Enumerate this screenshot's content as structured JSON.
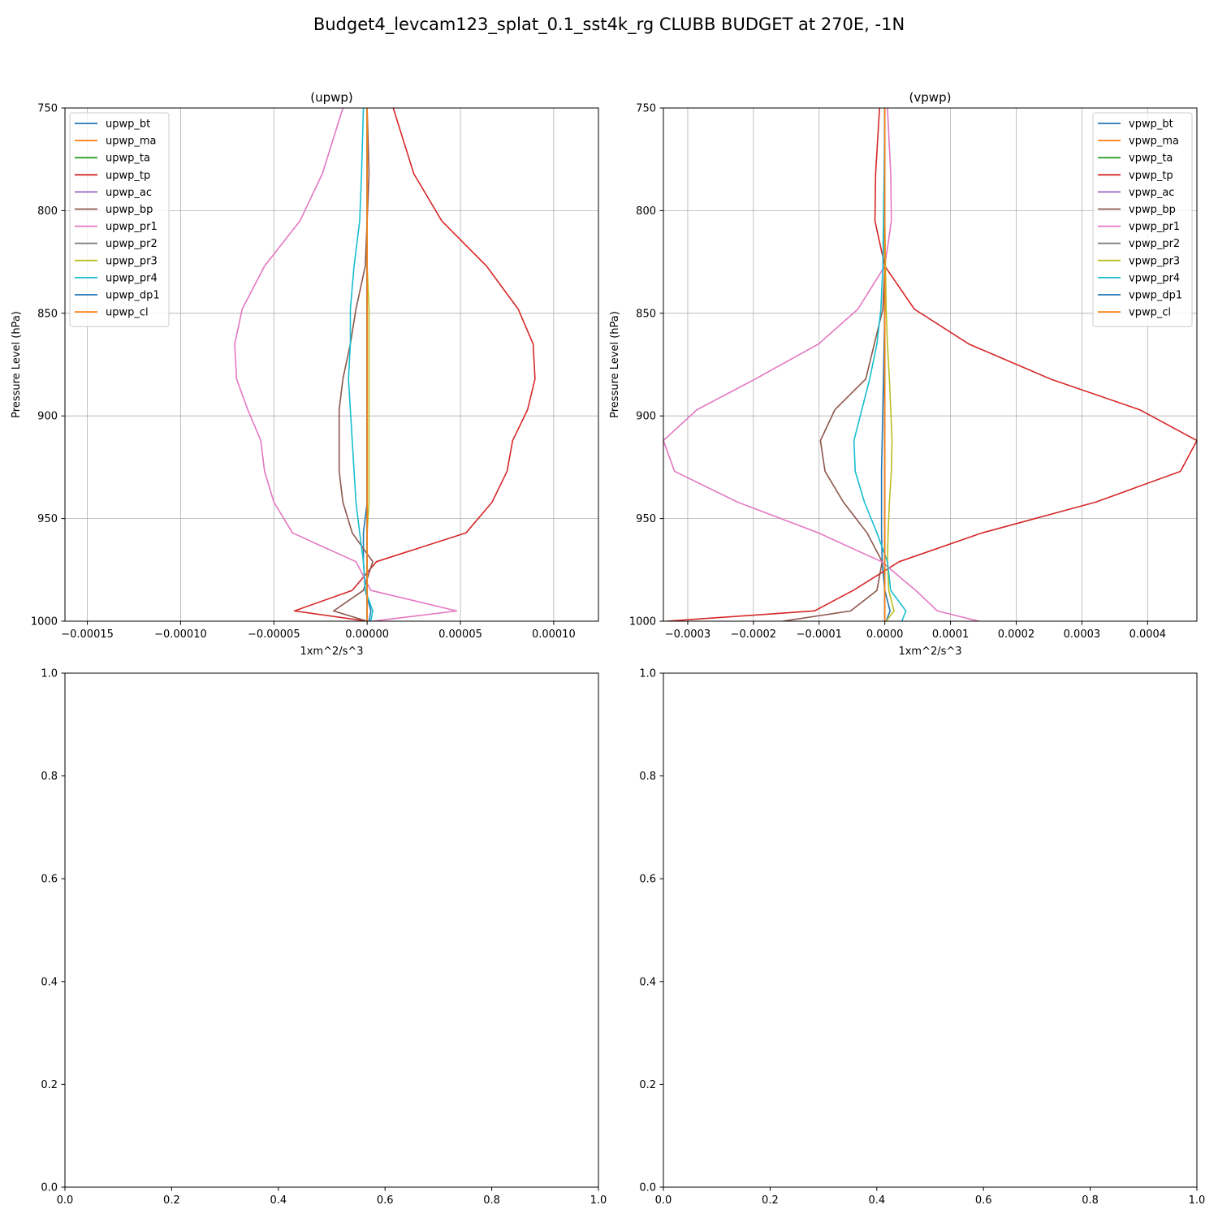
{
  "figure": {
    "suptitle": "Budget4_levcam123_splat_0.1_sst4k_rg CLUBB BUDGET at 270E, -1N"
  },
  "chart_data": [
    {
      "type": "line",
      "title": "(upwp)",
      "xlabel": "1xm^2/s^3",
      "ylabel": "Pressure Level (hPa)",
      "xlim": [
        -0.000162,
        0.000124
      ],
      "ylim": [
        1000,
        750
      ],
      "y_inverted": true,
      "grid": true,
      "legend_placement": "upper-left",
      "x_ticks": [
        -0.00015,
        -0.0001,
        -5e-05,
        0,
        5e-05,
        0.0001
      ],
      "x_tick_labels": [
        "−0.00015",
        "−0.00010",
        "−0.00005",
        "0.00000",
        "0.00005",
        "0.00010"
      ],
      "y_ticks": [
        750,
        800,
        850,
        900,
        950,
        1000
      ],
      "y_tick_labels": [
        "750",
        "800",
        "850",
        "900",
        "950",
        "1000"
      ],
      "levels": [
        750,
        782,
        805,
        827,
        848,
        865,
        882,
        897,
        912,
        927,
        942,
        957,
        971,
        985,
        995,
        1000
      ],
      "series": [
        {
          "name": "upwp_bt",
          "color": "#1f77b4",
          "values": [
            0,
            0,
            0,
            0,
            0,
            0,
            0,
            0,
            0,
            0,
            0,
            -2e-06,
            -2e-06,
            -1e-06,
            2e-06,
            1e-06
          ]
        },
        {
          "name": "upwp_ma",
          "color": "#ff7f0e",
          "values": [
            0,
            0,
            0,
            0,
            0,
            0,
            0,
            0,
            0,
            0,
            0,
            0,
            0,
            0,
            0,
            0
          ]
        },
        {
          "name": "upwp_ta",
          "color": "#2ca02c",
          "values": [
            0,
            0,
            0,
            0,
            0,
            0,
            0,
            0,
            0,
            0,
            0,
            0,
            0,
            0,
            0,
            0
          ]
        },
        {
          "name": "upwp_tp",
          "color": "#d62728",
          "values": [
            1.4e-05,
            2.5e-05,
            4e-05,
            6.4e-05,
            8.1e-05,
            8.9e-05,
            9e-05,
            8.6e-05,
            7.8e-05,
            7.5e-05,
            6.7e-05,
            5.3e-05,
            5e-06,
            -8e-06,
            -3.9e-05,
            0
          ]
        },
        {
          "name": "upwp_ac",
          "color": "#9467bd",
          "values": [
            0,
            0,
            0,
            0,
            0,
            0,
            0,
            0,
            0,
            0,
            0,
            0,
            0,
            0,
            0,
            0
          ]
        },
        {
          "name": "upwp_bp",
          "color": "#8c564b",
          "values": [
            0,
            1e-06,
            0,
            -1e-06,
            -6e-06,
            -9e-06,
            -1.3e-05,
            -1.5e-05,
            -1.5e-05,
            -1.5e-05,
            -1.3e-05,
            -8e-06,
            3e-06,
            -2e-06,
            -1.8e-05,
            0
          ]
        },
        {
          "name": "upwp_pr1",
          "color": "#e377c2",
          "values": [
            -1.3e-05,
            -2.4e-05,
            -3.6e-05,
            -5.5e-05,
            -6.7e-05,
            -7.1e-05,
            -7e-05,
            -6.4e-05,
            -5.7e-05,
            -5.5e-05,
            -5e-05,
            -4e-05,
            -6e-06,
            2e-06,
            4.8e-05,
            3e-06
          ]
        },
        {
          "name": "upwp_pr2",
          "color": "#7f7f7f",
          "values": [
            0,
            0,
            0,
            0,
            0,
            0,
            0,
            0,
            0,
            0,
            0,
            0,
            0,
            0,
            0,
            0
          ]
        },
        {
          "name": "upwp_pr3",
          "color": "#bcbd22",
          "values": [
            0,
            0,
            0,
            0,
            1e-06,
            1e-06,
            1e-06,
            1e-06,
            1e-06,
            1e-06,
            1e-06,
            0,
            0,
            0,
            0,
            0
          ]
        },
        {
          "name": "upwp_pr4",
          "color": "#17becf",
          "values": [
            -2e-06,
            -3e-06,
            -4e-06,
            -7e-06,
            -9e-06,
            -9e-06,
            -1e-05,
            -9e-06,
            -8e-06,
            -7e-06,
            -6e-06,
            -4e-06,
            -2e-06,
            -1e-06,
            3e-06,
            2e-06
          ]
        },
        {
          "name": "upwp_dp1",
          "color": "#1f77b4",
          "values": [
            0,
            0,
            0,
            0,
            0,
            0,
            0,
            0,
            0,
            0,
            0,
            0,
            0,
            0,
            0,
            0
          ]
        },
        {
          "name": "upwp_cl",
          "color": "#ff7f0e",
          "values": [
            0,
            0,
            0,
            0,
            0,
            0,
            0,
            0,
            0,
            0,
            0,
            0,
            0,
            0,
            0,
            0
          ]
        }
      ]
    },
    {
      "type": "line",
      "title": "(vpwp)",
      "xlabel": "1xm^2/s^3",
      "ylabel": "Pressure Level (hPa)",
      "xlim": [
        -0.000337,
        0.000475
      ],
      "ylim": [
        1000,
        750
      ],
      "y_inverted": true,
      "grid": true,
      "legend_placement": "upper-right",
      "x_ticks": [
        -0.0003,
        -0.0002,
        -0.0001,
        0,
        0.0001,
        0.0002,
        0.0003,
        0.0004
      ],
      "x_tick_labels": [
        "−0.0003",
        "−0.0002",
        "−0.0001",
        "0.0000",
        "0.0001",
        "0.0002",
        "0.0003",
        "0.0004"
      ],
      "y_ticks": [
        750,
        800,
        850,
        900,
        950,
        1000
      ],
      "y_tick_labels": [
        "750",
        "800",
        "850",
        "900",
        "950",
        "1000"
      ],
      "levels": [
        750,
        782,
        805,
        827,
        848,
        865,
        882,
        897,
        912,
        927,
        942,
        957,
        971,
        985,
        995,
        1000
      ],
      "series": [
        {
          "name": "vpwp_bt",
          "color": "#1f77b4",
          "values": [
            0,
            0,
            0,
            0,
            0,
            -1e-06,
            -2e-06,
            -3e-06,
            -4e-06,
            -5e-06,
            -5e-06,
            -5e-06,
            -4e-06,
            0,
            8e-06,
            2e-06
          ]
        },
        {
          "name": "vpwp_ma",
          "color": "#ff7f0e",
          "values": [
            0,
            0,
            0,
            0,
            0,
            0,
            0,
            0,
            0,
            0,
            0,
            0,
            0,
            0,
            0,
            0
          ]
        },
        {
          "name": "vpwp_ta",
          "color": "#2ca02c",
          "values": [
            0,
            0,
            0,
            0,
            0,
            0,
            0,
            0,
            0,
            0,
            0,
            0,
            0,
            0,
            0,
            0
          ]
        },
        {
          "name": "vpwp_tp",
          "color": "#d62728",
          "values": [
            -8e-06,
            -1.4e-05,
            -1.5e-05,
            0,
            4.5e-05,
            0.000128,
            0.000252,
            0.000388,
            0.000475,
            0.00045,
            0.000321,
            0.000148,
            2.2e-05,
            -4.8e-05,
            -0.000107,
            -0.000332
          ]
        },
        {
          "name": "vpwp_ac",
          "color": "#9467bd",
          "values": [
            0,
            0,
            0,
            0,
            0,
            0,
            0,
            0,
            0,
            0,
            0,
            0,
            0,
            0,
            0,
            0
          ]
        },
        {
          "name": "vpwp_bp",
          "color": "#8c564b",
          "values": [
            0,
            0,
            0,
            0,
            -3e-06,
            -1.6e-05,
            -2.9e-05,
            -7.6e-05,
            -9.8e-05,
            -9.1e-05,
            -6.3e-05,
            -2.7e-05,
            -4e-06,
            -1.2e-05,
            -5.2e-05,
            -0.000155
          ]
        },
        {
          "name": "vpwp_pr1",
          "color": "#e377c2",
          "values": [
            4e-06,
            9e-06,
            1e-05,
            0,
            -4.1e-05,
            -0.000101,
            -0.000197,
            -0.000286,
            -0.000337,
            -0.00032,
            -0.000224,
            -0.000101,
            -5e-06,
            4.7e-05,
            8e-05,
            0.000143
          ]
        },
        {
          "name": "vpwp_pr2",
          "color": "#7f7f7f",
          "values": [
            0,
            0,
            0,
            0,
            0,
            0,
            0,
            0,
            0,
            0,
            0,
            0,
            0,
            0,
            0,
            0
          ]
        },
        {
          "name": "vpwp_pr3",
          "color": "#bcbd22",
          "values": [
            0,
            0,
            0,
            1e-06,
            2e-06,
            4e-06,
            7e-06,
            9e-06,
            1.1e-05,
            1e-05,
            7e-06,
            5e-06,
            4e-06,
            6e-06,
            1.4e-05,
            2e-06
          ]
        },
        {
          "name": "vpwp_pr4",
          "color": "#17becf",
          "values": [
            0,
            -1e-06,
            -2e-06,
            -3e-06,
            -6e-06,
            -1.2e-05,
            -2.3e-05,
            -3.5e-05,
            -4.7e-05,
            -4.5e-05,
            -3.1e-05,
            -1.2e-05,
            4e-06,
            9e-06,
            3.2e-05,
            2.6e-05
          ]
        },
        {
          "name": "vpwp_dp1",
          "color": "#1f77b4",
          "values": [
            0,
            0,
            0,
            0,
            0,
            0,
            0,
            0,
            0,
            0,
            0,
            0,
            0,
            0,
            0,
            0
          ]
        },
        {
          "name": "vpwp_cl",
          "color": "#ff7f0e",
          "values": [
            0,
            0,
            0,
            0,
            0,
            0,
            0,
            0,
            0,
            0,
            0,
            0,
            0,
            0,
            0,
            0
          ]
        }
      ]
    },
    {
      "type": "line",
      "title": "",
      "xlim": [
        0,
        1
      ],
      "ylim": [
        0,
        1
      ],
      "grid": false,
      "x_ticks": [
        0,
        0.2,
        0.4,
        0.6,
        0.8,
        1
      ],
      "x_tick_labels": [
        "0.0",
        "0.2",
        "0.4",
        "0.6",
        "0.8",
        "1.0"
      ],
      "y_ticks": [
        0,
        0.2,
        0.4,
        0.6,
        0.8,
        1
      ],
      "y_tick_labels": [
        "0.0",
        "0.2",
        "0.4",
        "0.6",
        "0.8",
        "1.0"
      ],
      "series": []
    },
    {
      "type": "line",
      "title": "",
      "xlim": [
        0,
        1
      ],
      "ylim": [
        0,
        1
      ],
      "grid": false,
      "x_ticks": [
        0,
        0.2,
        0.4,
        0.6,
        0.8,
        1
      ],
      "x_tick_labels": [
        "0.0",
        "0.2",
        "0.4",
        "0.6",
        "0.8",
        "1.0"
      ],
      "y_ticks": [
        0,
        0.2,
        0.4,
        0.6,
        0.8,
        1
      ],
      "y_tick_labels": [
        "0.0",
        "0.2",
        "0.4",
        "0.6",
        "0.8",
        "1.0"
      ],
      "series": []
    }
  ]
}
